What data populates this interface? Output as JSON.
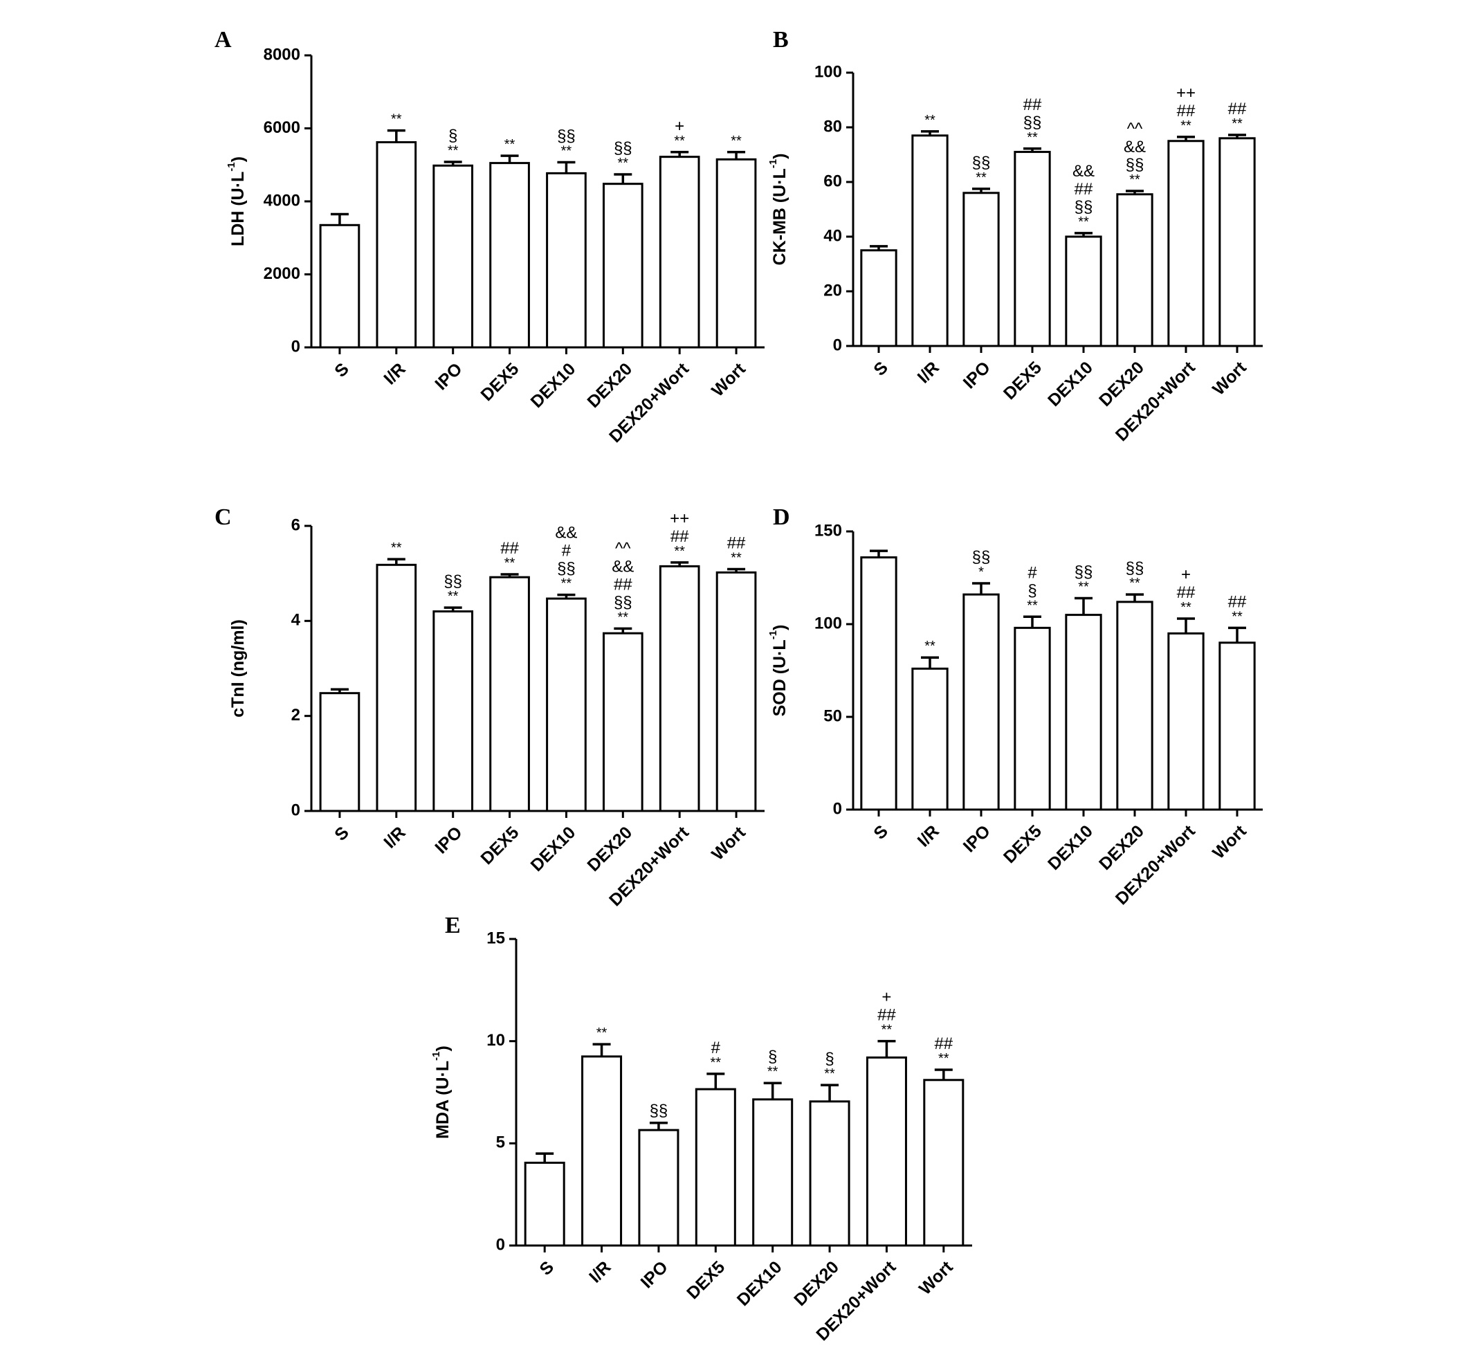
{
  "chart_data": [
    {
      "panel": "A",
      "type": "bar",
      "categories": [
        "S",
        "I/R",
        "IPO",
        "DEX5",
        "DEX10",
        "DEX20",
        "DEX20+Wort",
        "Wort"
      ],
      "values": [
        3350,
        5620,
        4980,
        5050,
        4770,
        4480,
        5220,
        5150
      ],
      "errors": [
        300,
        320,
        100,
        200,
        300,
        260,
        130,
        200
      ],
      "annotations": [
        [],
        [
          "**"
        ],
        [
          "**",
          "§"
        ],
        [
          "**"
        ],
        [
          "**",
          "§§"
        ],
        [
          "**",
          "§§"
        ],
        [
          "**",
          "+"
        ],
        [
          "**"
        ]
      ],
      "ylabel": "LDH (U·L",
      "ylabel_sup": "-1",
      "ylabel_close": ")",
      "ylim": [
        0,
        8000
      ],
      "yticks": [
        0,
        2000,
        4000,
        6000,
        8000
      ]
    },
    {
      "panel": "B",
      "type": "bar",
      "categories": [
        "S",
        "I/R",
        "IPO",
        "DEX5",
        "DEX10",
        "DEX20",
        "DEX20+Wort",
        "Wort"
      ],
      "values": [
        35,
        77,
        56,
        71,
        40,
        55.5,
        75,
        76
      ],
      "errors": [
        1.5,
        1.5,
        1.5,
        1.2,
        1.3,
        1.2,
        1.5,
        1.2
      ],
      "annotations": [
        [],
        [
          "**"
        ],
        [
          "**",
          "§§"
        ],
        [
          "**",
          "§§",
          "##"
        ],
        [
          "**",
          "§§",
          "##",
          "&&"
        ],
        [
          "**",
          "§§",
          "&&",
          "^^"
        ],
        [
          "**",
          "##",
          "++"
        ],
        [
          "**",
          "##"
        ]
      ],
      "ylabel": "CK-MB (U·L",
      "ylabel_sup": "-1",
      "ylabel_close": ")",
      "ylim": [
        0,
        100
      ],
      "yticks": [
        0,
        20,
        40,
        60,
        80,
        100
      ]
    },
    {
      "panel": "C",
      "type": "bar",
      "categories": [
        "S",
        "I/R",
        "IPO",
        "DEX5",
        "DEX10",
        "DEX20",
        "DEX20+Wort",
        "Wort"
      ],
      "values": [
        2.48,
        5.18,
        4.2,
        4.92,
        4.47,
        3.74,
        5.15,
        5.02
      ],
      "errors": [
        0.08,
        0.12,
        0.08,
        0.06,
        0.08,
        0.1,
        0.08,
        0.07
      ],
      "annotations": [
        [],
        [
          "**"
        ],
        [
          "**",
          "§§"
        ],
        [
          "**",
          "##"
        ],
        [
          "**",
          "§§",
          "#",
          "&&"
        ],
        [
          "**",
          "§§",
          "##",
          "&&",
          "^^"
        ],
        [
          "**",
          "##",
          "++"
        ],
        [
          "**",
          "##"
        ]
      ],
      "ylabel": "cTnI (ng/ml)",
      "ylabel_sup": "",
      "ylabel_close": "",
      "ylim": [
        0,
        6
      ],
      "yticks": [
        0,
        2,
        4,
        6
      ]
    },
    {
      "panel": "D",
      "type": "bar",
      "categories": [
        "S",
        "I/R",
        "IPO",
        "DEX5",
        "DEX10",
        "DEX20",
        "DEX20+Wort",
        "Wort"
      ],
      "values": [
        136,
        76,
        116,
        98,
        105,
        112,
        95,
        90
      ],
      "errors": [
        3.5,
        6,
        6,
        6,
        9,
        4,
        8,
        8
      ],
      "annotations": [
        [],
        [
          "**"
        ],
        [
          "*",
          "§§"
        ],
        [
          "**",
          "§",
          "#"
        ],
        [
          "**",
          "§§"
        ],
        [
          "**",
          "§§"
        ],
        [
          "**",
          "##",
          "+"
        ],
        [
          "**",
          "##"
        ]
      ],
      "ylabel": "SOD (U·L",
      "ylabel_sup": "-1",
      "ylabel_close": ")",
      "ylim": [
        0,
        150
      ],
      "yticks": [
        0,
        50,
        100,
        150
      ]
    },
    {
      "panel": "E",
      "type": "bar",
      "categories": [
        "S",
        "I/R",
        "IPO",
        "DEX5",
        "DEX10",
        "DEX20",
        "DEX20+Wort",
        "Wort"
      ],
      "values": [
        4.05,
        9.25,
        5.65,
        7.65,
        7.15,
        7.05,
        9.2,
        8.1
      ],
      "errors": [
        0.45,
        0.6,
        0.35,
        0.75,
        0.8,
        0.8,
        0.8,
        0.5
      ],
      "annotations": [
        [],
        [
          "**"
        ],
        [
          "§§"
        ],
        [
          "**",
          "#"
        ],
        [
          "**",
          "§"
        ],
        [
          "**",
          "§"
        ],
        [
          "**",
          "##",
          "+"
        ],
        [
          "**",
          "##"
        ]
      ],
      "ylabel": "MDA (U·L",
      "ylabel_sup": "-1",
      "ylabel_close": ")",
      "ylim": [
        0,
        15
      ],
      "yticks": [
        0,
        5,
        10,
        15
      ]
    }
  ]
}
